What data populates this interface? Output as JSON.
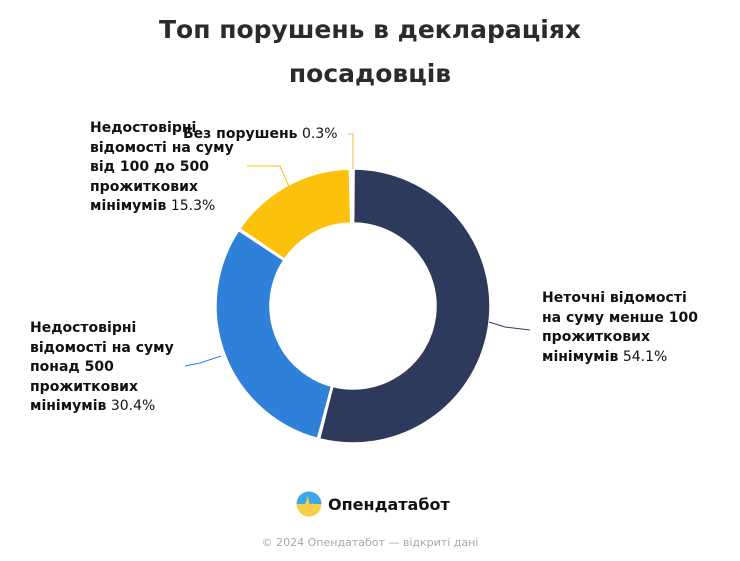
{
  "title_line1": "Топ порушень в деклараціях",
  "title_line2": "посадовців",
  "chart_data": {
    "type": "pie",
    "subtype": "donut",
    "title": "Топ порушень в деклараціях посадовців",
    "categories": [
      "Неточні відомості на суму менше 100 прожиткових мінімумів",
      "Недостовірні відомості на суму понад 500 прожиткових мінімумів",
      "Недостовірні відомості на суму від 100 до 500 прожиткових мінімумів",
      "Без порушень"
    ],
    "values": [
      54.1,
      30.4,
      15.3,
      0.3
    ],
    "unit": "%",
    "colors": [
      "#2e3a5c",
      "#2f80d9",
      "#fcc10a",
      "#f0b84a"
    ],
    "legend": "none (leader-line labels)"
  },
  "labels": {
    "dark": {
      "text": "Неточні відомості на суму менше 100 прожиткових мінімумів",
      "l1": "Неточні відомості",
      "l2": "на суму менше 100",
      "l3": "прожиткових",
      "l4": "мінімумів",
      "pct": "54.1%"
    },
    "blue": {
      "l1": "Недостовірні",
      "l2": "відомості на суму",
      "l3": "понад 500",
      "l4": "прожиткових",
      "l5": "мінімумів",
      "pct": "30.4%"
    },
    "yellow": {
      "l1": "Недостовірні",
      "l2": "відомості на суму",
      "l3": "від 100 до 500",
      "l4": "прожиткових",
      "l5": "мінімумів",
      "pct": "15.3%"
    },
    "none": {
      "l1": "Без порушень",
      "pct": "0.3%"
    }
  },
  "brand": {
    "name": "Опендатабот",
    "icon": "opendatabot-logo-icon"
  },
  "footer": "© 2024 Опендатабот — відкриті дані"
}
